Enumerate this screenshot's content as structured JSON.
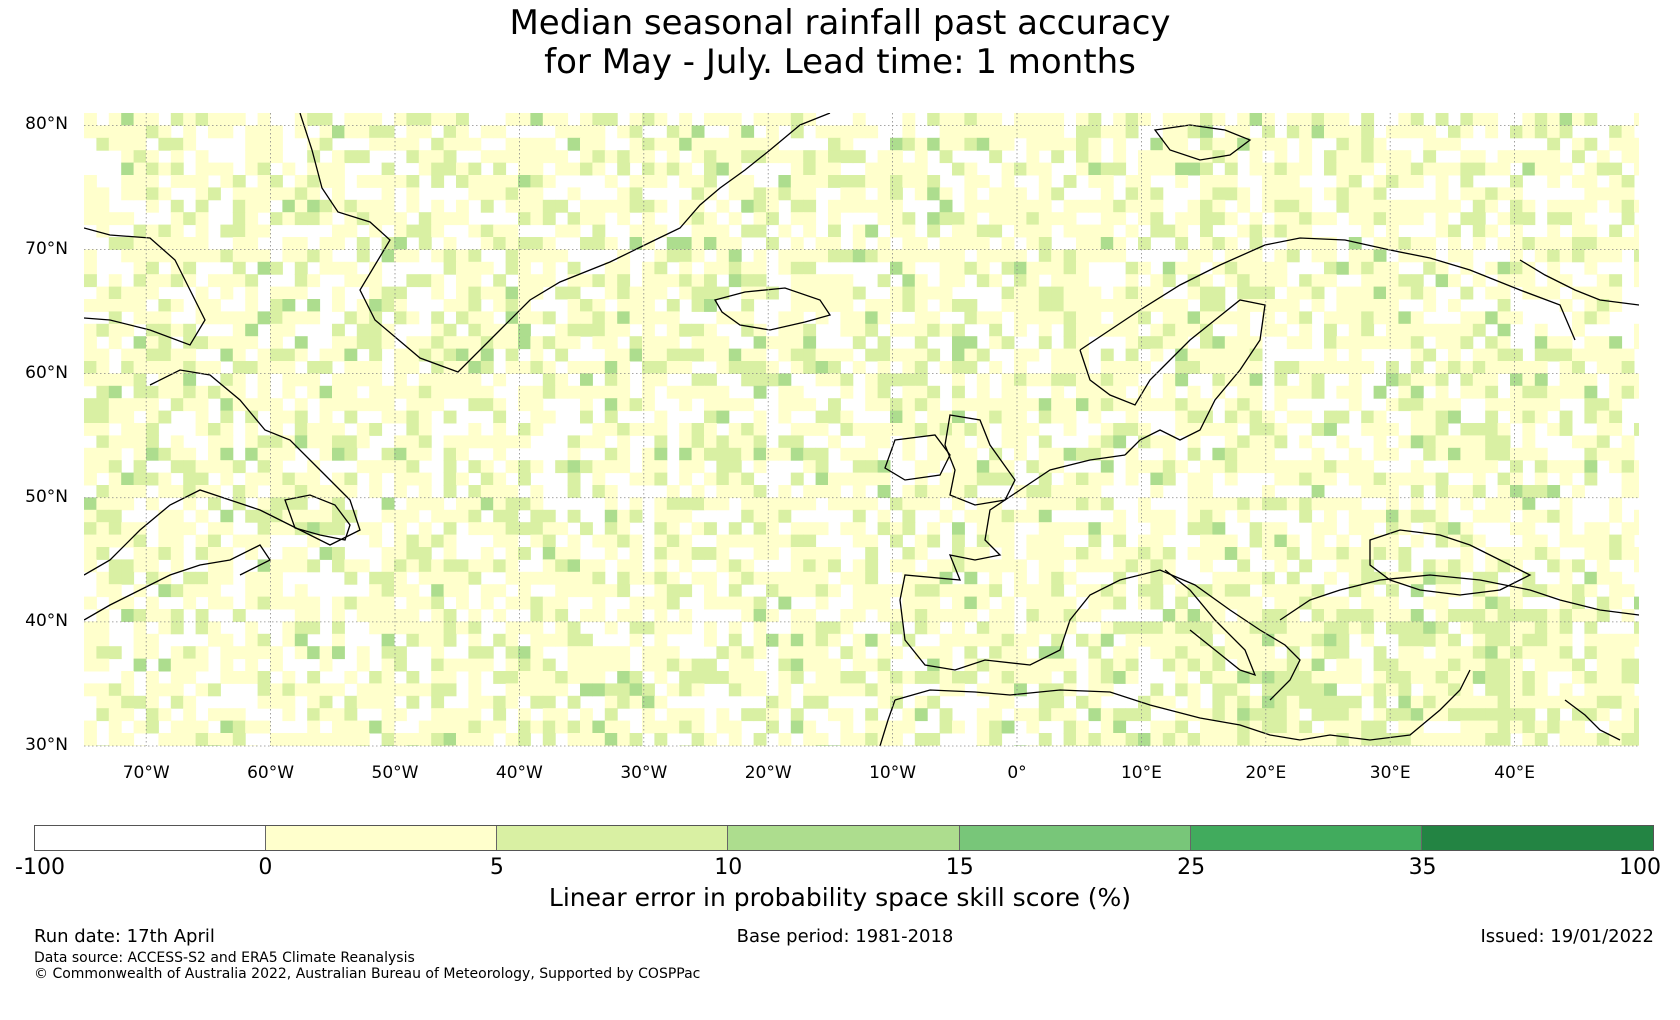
{
  "title_line1": "Median seasonal rainfall past accuracy",
  "title_line2": "for May - July. Lead time: 1 months",
  "map": {
    "extent": {
      "lon_min": -75,
      "lon_max": 50,
      "lat_min": 30,
      "lat_max": 81
    },
    "lat_labels": [
      {
        "lat": 80,
        "text": "80°N"
      },
      {
        "lat": 70,
        "text": "70°N"
      },
      {
        "lat": 60,
        "text": "60°N"
      },
      {
        "lat": 50,
        "text": "50°N"
      },
      {
        "lat": 40,
        "text": "40°N"
      },
      {
        "lat": 30,
        "text": "30°N"
      }
    ],
    "lon_labels": [
      {
        "lon": -70,
        "text": "70°W"
      },
      {
        "lon": -60,
        "text": "60°W"
      },
      {
        "lon": -50,
        "text": "50°W"
      },
      {
        "lon": -40,
        "text": "40°W"
      },
      {
        "lon": -30,
        "text": "30°W"
      },
      {
        "lon": -20,
        "text": "20°W"
      },
      {
        "lon": -10,
        "text": "10°W"
      },
      {
        "lon": 0,
        "text": "0°"
      },
      {
        "lon": 10,
        "text": "10°E"
      },
      {
        "lon": 20,
        "text": "20°E"
      },
      {
        "lon": 30,
        "text": "30°E"
      },
      {
        "lon": 40,
        "text": "40°E"
      }
    ]
  },
  "colorbar": {
    "label": "Linear error in probability space skill score (%)",
    "ticks": [
      "-100",
      "0",
      "5",
      "10",
      "15",
      "25",
      "35",
      "100"
    ],
    "bins": [
      {
        "from": -100,
        "to": 0,
        "color": "#ffffff"
      },
      {
        "from": 0,
        "to": 5,
        "color": "#ffffcc"
      },
      {
        "from": 5,
        "to": 10,
        "color": "#d9f0a3"
      },
      {
        "from": 10,
        "to": 15,
        "color": "#addd8e"
      },
      {
        "from": 15,
        "to": 25,
        "color": "#78c679"
      },
      {
        "from": 25,
        "to": 35,
        "color": "#41ab5d"
      },
      {
        "from": 35,
        "to": 100,
        "color": "#238443"
      }
    ]
  },
  "footer": {
    "run_date": "Run date: 17th April",
    "base_period": "Base period: 1981-2018",
    "issued": "Issued: 19/01/2022",
    "data_source": "Data source: ACCESS-S2 and ERA5 Climate Reanalysis",
    "copyright": "© Commonwealth of Australia 2022, Australian Bureau of Meteorology, Supported by COSPPac"
  }
}
